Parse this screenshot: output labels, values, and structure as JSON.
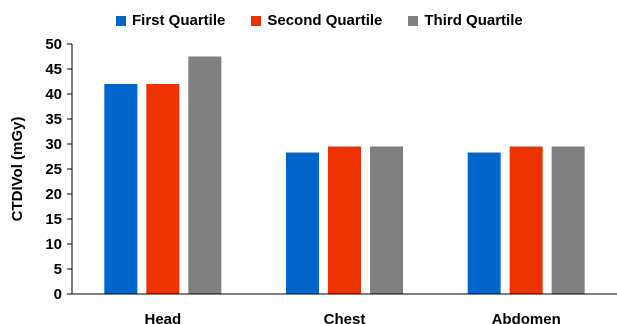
{
  "chart_data": {
    "type": "bar",
    "title": "",
    "xlabel": "",
    "ylabel": "CTDIVol (mGy)",
    "ylim": [
      0,
      50
    ],
    "yticks": [
      0,
      5,
      10,
      15,
      20,
      25,
      30,
      35,
      40,
      45,
      50
    ],
    "grid": false,
    "legend_position": "top",
    "categories": [
      "Head",
      "Chest",
      "Abdomen"
    ],
    "series": [
      {
        "name": "First Quartile",
        "color": "#0066CC",
        "values": [
          42.0,
          28.3,
          28.3
        ]
      },
      {
        "name": "Second Quartile",
        "color": "#EE3300",
        "values": [
          42.0,
          29.5,
          29.5
        ]
      },
      {
        "name": "Third Quartile",
        "color": "#808080",
        "values": [
          47.5,
          29.5,
          29.5
        ]
      }
    ]
  }
}
